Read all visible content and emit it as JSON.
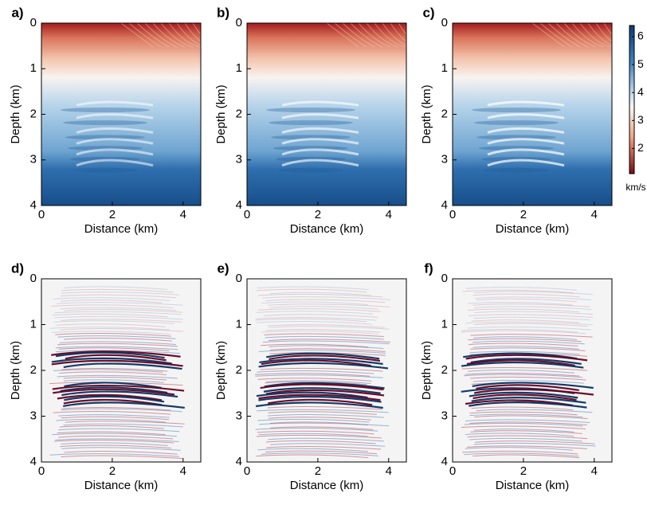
{
  "chart_data": [
    {
      "type": "heatmap",
      "panel_label": "a)",
      "xlabel": "Distance (km)",
      "ylabel": "Depth (km)",
      "xlim": [
        0,
        4.5
      ],
      "ylim": [
        4,
        0
      ],
      "xticks": [
        0,
        2,
        4
      ],
      "yticks": [
        0,
        1,
        2,
        3,
        4
      ]
    },
    {
      "type": "heatmap",
      "panel_label": "b)",
      "xlabel": "Distance (km)",
      "ylabel": "Depth (km)",
      "xlim": [
        0,
        4.5
      ],
      "ylim": [
        4,
        0
      ],
      "xticks": [
        0,
        2,
        4
      ],
      "yticks": [
        0,
        1,
        2,
        3,
        4
      ]
    },
    {
      "type": "heatmap",
      "panel_label": "c)",
      "xlabel": "Distance (km)",
      "ylabel": "Depth (km)",
      "xlim": [
        0,
        4.5
      ],
      "ylim": [
        4,
        0
      ],
      "xticks": [
        0,
        2,
        4
      ],
      "yticks": [
        0,
        1,
        2,
        3,
        4
      ]
    },
    {
      "type": "heatmap",
      "panel_label": "d)",
      "xlabel": "Distance (km)",
      "ylabel": "Depth (km)",
      "xlim": [
        0,
        4.5
      ],
      "ylim": [
        4,
        0
      ],
      "xticks": [
        0,
        2,
        4
      ],
      "yticks": [
        0,
        1,
        2,
        3,
        4
      ]
    },
    {
      "type": "heatmap",
      "panel_label": "e)",
      "xlabel": "Distance (km)",
      "ylabel": "Depth (km)",
      "xlim": [
        0,
        4.5
      ],
      "ylim": [
        4,
        0
      ],
      "xticks": [
        0,
        2,
        4
      ],
      "yticks": [
        0,
        1,
        2,
        3,
        4
      ]
    },
    {
      "type": "heatmap",
      "panel_label": "f)",
      "xlabel": "Distance (km)",
      "ylabel": "Depth (km)",
      "xlim": [
        0,
        4.5
      ],
      "ylim": [
        4,
        0
      ],
      "xticks": [
        0,
        2,
        4
      ],
      "yticks": [
        0,
        1,
        2,
        3,
        4
      ]
    }
  ],
  "colorbar": {
    "label": "km/s",
    "clim": [
      1.1,
      6.4
    ],
    "ticks": [
      2,
      3,
      4,
      5,
      6
    ]
  }
}
